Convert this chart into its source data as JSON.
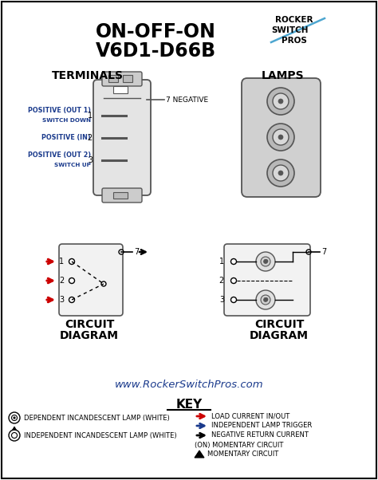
{
  "title_line1": "ON-OFF-ON",
  "title_line2": "V6D1-D66B",
  "bg_color": "#ffffff",
  "border_color": "#000000",
  "text_color": "#000000",
  "blue_color": "#1a3a8c",
  "red_color": "#cc0000",
  "gray_color": "#aaaaaa",
  "dark_gray": "#555555",
  "light_gray": "#cccccc",
  "logo_blue": "#4da6d0",
  "terminals_label": "TERMINALS",
  "lamps_label": "LAMPS",
  "circuit_label1": "CIRCUIT",
  "circuit_label2": "DIAGRAM",
  "website": "www.RockerSwitchPros.com",
  "key_label": "KEY",
  "neg_label": "7 NEGATIVE",
  "key_items_left": [
    "DEPENDENT INCANDESCENT LAMP (WHITE)",
    "INDEPENDENT INCANDESCENT LAMP (WHITE)"
  ],
  "key_items_right": [
    "LOAD CURRENT IN/OUT",
    "INDEPENDENT LAMP TRIGGER",
    "NEGATIVE RETURN CURRENT",
    "(ON) MOMENTARY CIRCUIT",
    "MOMENTARY CIRCUIT"
  ],
  "key_arrow_colors": [
    "#cc0000",
    "#1a3a8c",
    "#000000"
  ]
}
